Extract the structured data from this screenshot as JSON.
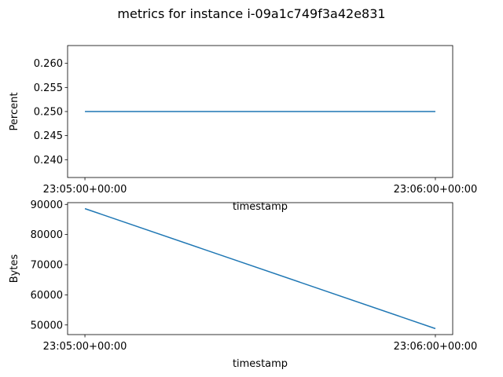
{
  "figure": {
    "title": "metrics for instance i-09a1c749f3a42e831",
    "line_color": "#1f77b4"
  },
  "chart_data": [
    {
      "type": "line",
      "xlabel": "timestamp",
      "ylabel": "Percent",
      "x": [
        "23:05:00+00:00",
        "23:06:00+00:00"
      ],
      "x_ticks": [
        "23:05:00+00:00",
        "23:06:00+00:00"
      ],
      "series": [
        {
          "values": [
            0.25,
            0.25
          ]
        }
      ],
      "ylim": [
        0.2363,
        0.2637
      ],
      "y_ticks": [
        0.24,
        0.245,
        0.25,
        0.255,
        0.26
      ],
      "y_tick_labels": [
        "0.240",
        "0.245",
        "0.250",
        "0.255",
        "0.260"
      ],
      "grid": false,
      "legend": "none"
    },
    {
      "type": "line",
      "xlabel": "timestamp",
      "ylabel": "Bytes",
      "x": [
        "23:05:00+00:00",
        "23:06:00+00:00"
      ],
      "x_ticks": [
        "23:05:00+00:00",
        "23:06:00+00:00"
      ],
      "series": [
        {
          "values": [
            88600,
            48800
          ]
        }
      ],
      "ylim": [
        46810,
        90590
      ],
      "y_ticks": [
        50000,
        60000,
        70000,
        80000,
        90000
      ],
      "y_tick_labels": [
        "50000",
        "60000",
        "70000",
        "80000",
        "90000"
      ],
      "grid": false,
      "legend": "none"
    }
  ]
}
